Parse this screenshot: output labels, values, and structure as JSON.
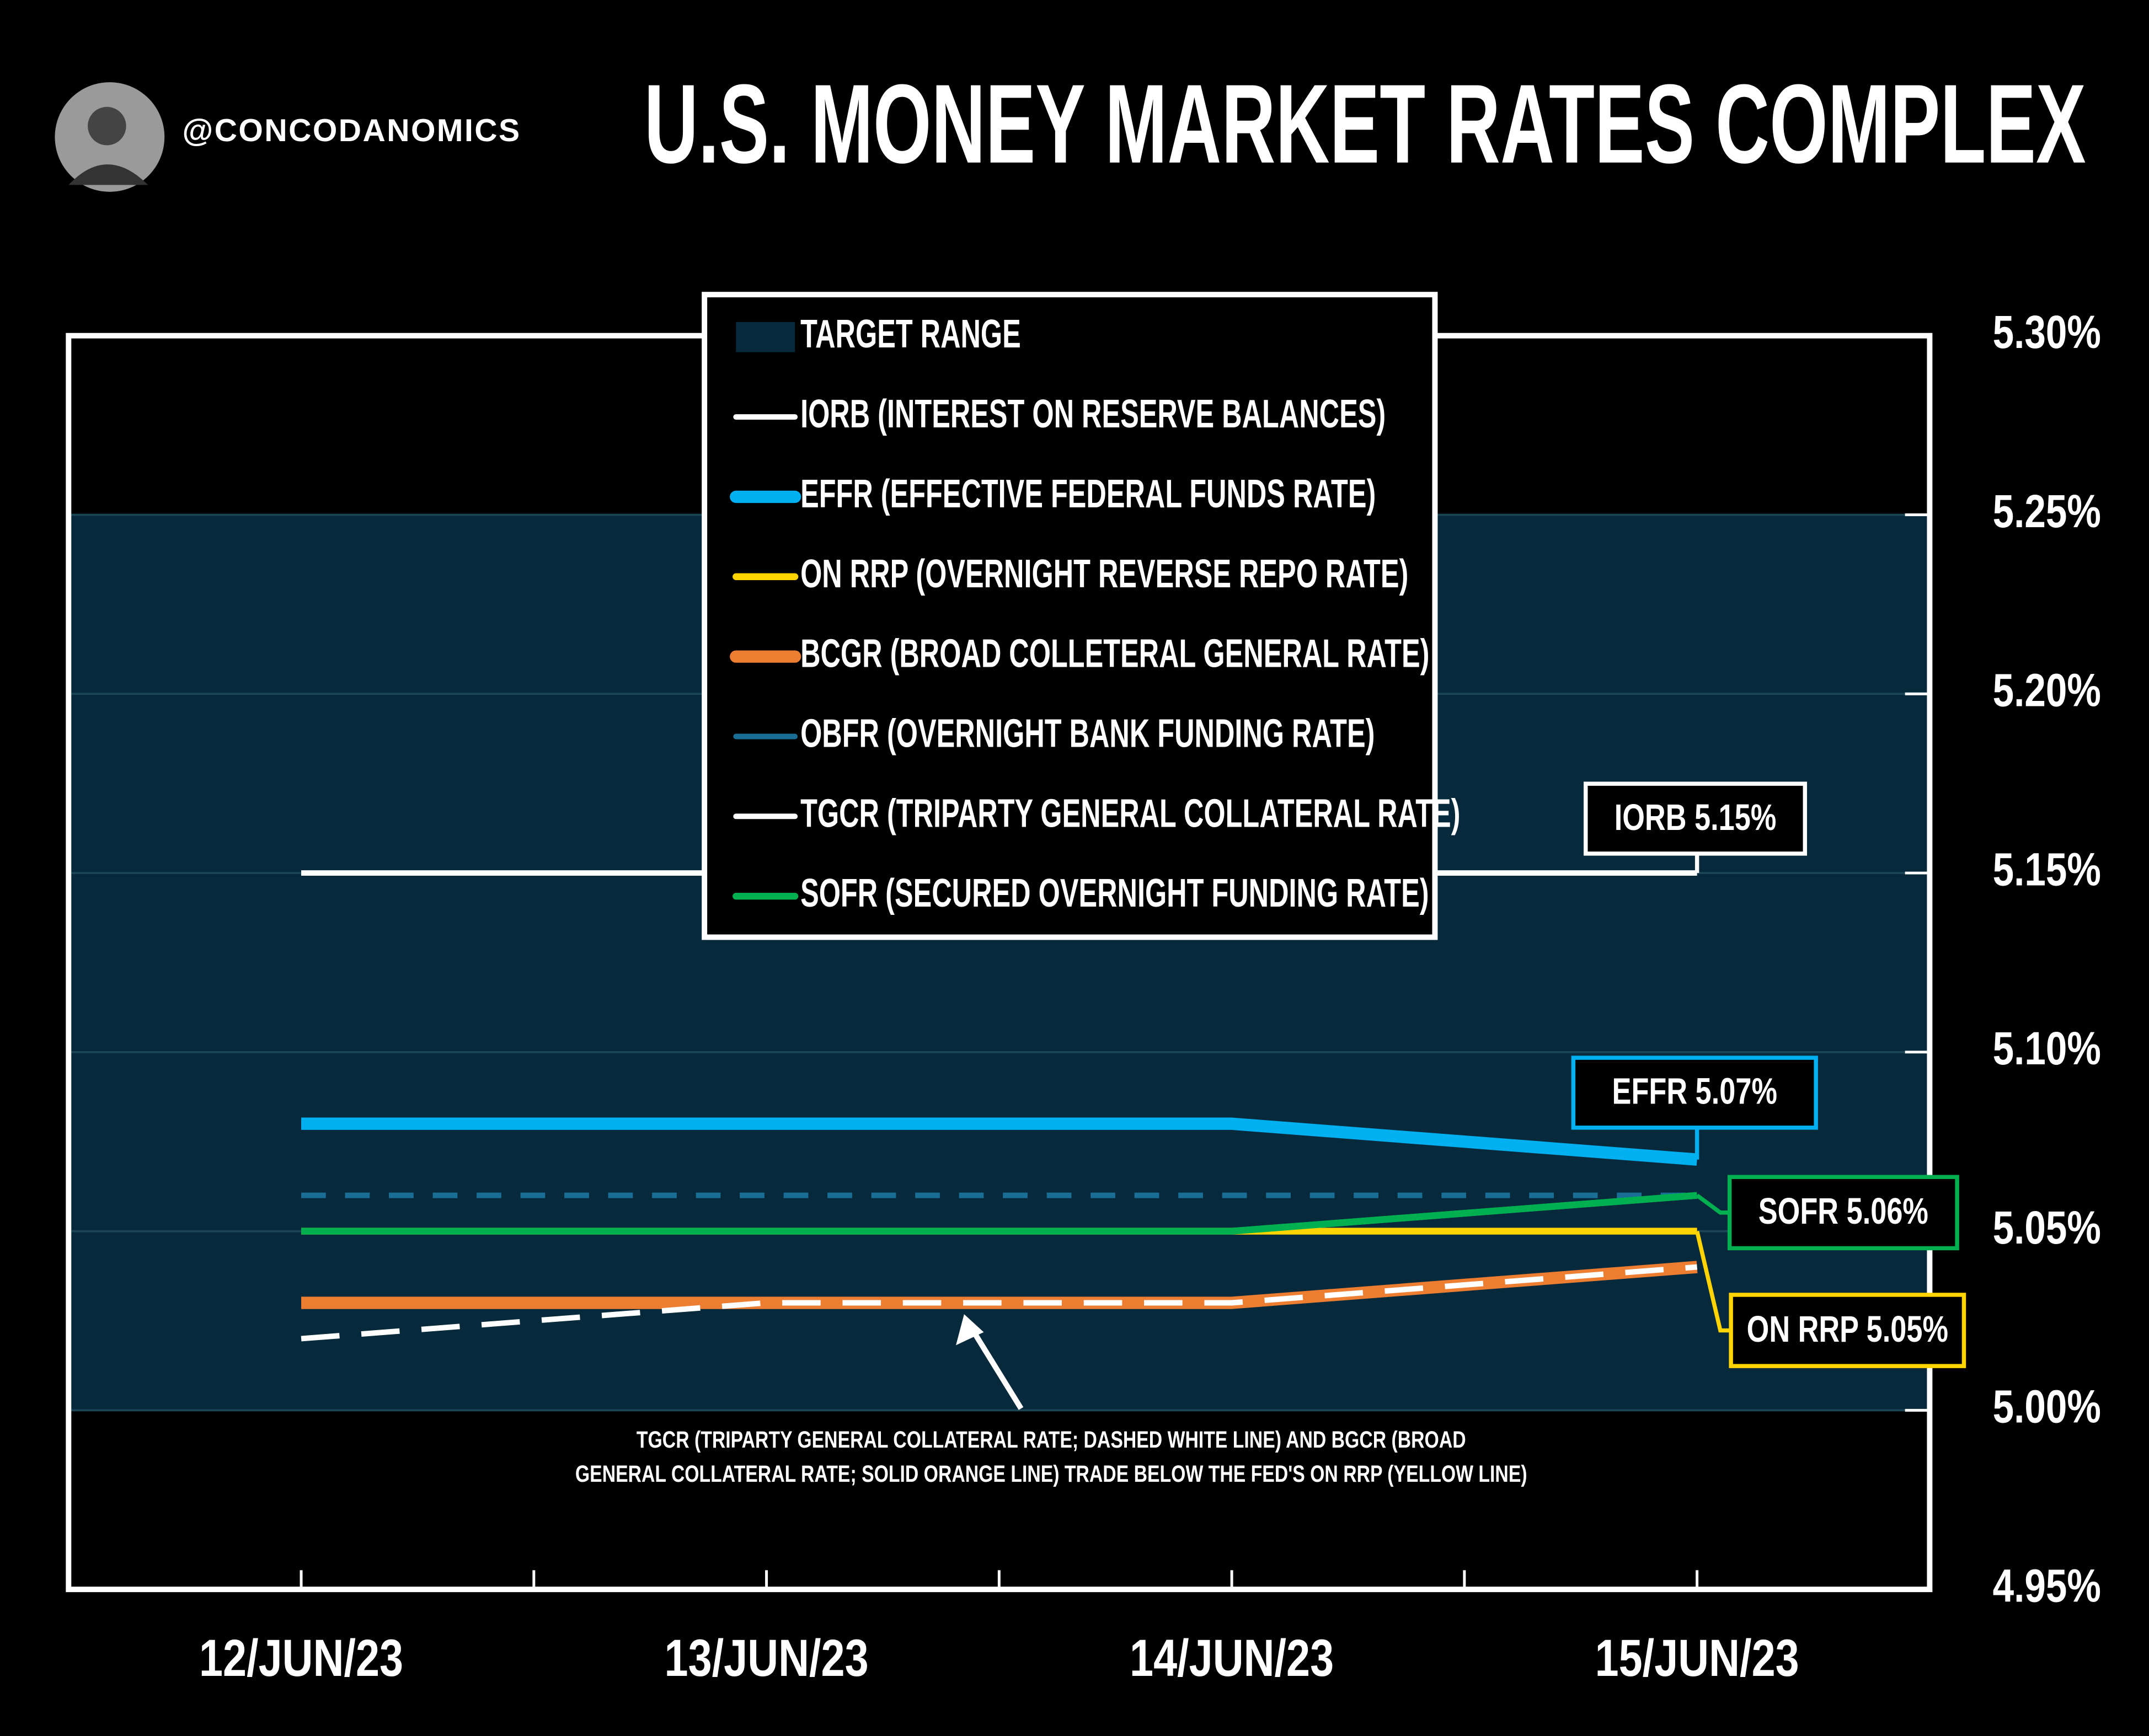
{
  "chart_data": {
    "type": "line",
    "handle": "@CONCODANOMICS",
    "title": "U.S. MONEY MARKET RATES COMPLEX",
    "categories": [
      "12/JUN/23",
      "13/JUN/23",
      "14/JUN/23",
      "15/JUN/23"
    ],
    "ylim": [
      4.95,
      5.3
    ],
    "yticks": [
      {
        "value": 4.95,
        "label": "4.95%"
      },
      {
        "value": 5.0,
        "label": "5.00%"
      },
      {
        "value": 5.05,
        "label": "5.05%"
      },
      {
        "value": 5.1,
        "label": "5.10%"
      },
      {
        "value": 5.15,
        "label": "5.15%"
      },
      {
        "value": 5.2,
        "label": "5.20%"
      },
      {
        "value": 5.25,
        "label": "5.25%"
      },
      {
        "value": 5.3,
        "label": "5.30%"
      }
    ],
    "grid": true,
    "target_range": {
      "name": "TARGET RANGE",
      "values": [
        5.0,
        5.25
      ],
      "color": "#062a3b"
    },
    "series": [
      {
        "name": "IORB (INTEREST ON RESERVE BALANCES)",
        "color": "#ffffff",
        "line_style": "solid",
        "values": [
          5.15,
          5.15,
          5.15,
          5.15
        ],
        "value_labels": [
          null,
          null,
          null,
          "IORB 5.15%"
        ]
      },
      {
        "name": "EFFR (EFFECTIVE FEDERAL FUNDS RATE)",
        "color": "#00b0f0",
        "line_style": "solid",
        "values": [
          5.08,
          5.08,
          5.08,
          5.07
        ],
        "value_labels": [
          null,
          null,
          null,
          "EFFR 5.07%"
        ]
      },
      {
        "name": "ON RRP (OVERNIGHT REVERSE REPO RATE)",
        "color": "#ffd400",
        "line_style": "solid",
        "values": [
          5.05,
          5.05,
          5.05,
          5.05
        ],
        "value_labels": [
          null,
          null,
          null,
          "ON RRP 5.05%"
        ]
      },
      {
        "name": "BCGR (BROAD COLLETERAL GENERAL RATE)",
        "color": "#ed7d31",
        "line_style": "solid",
        "values": [
          5.03,
          5.03,
          5.03,
          5.04
        ]
      },
      {
        "name": "OBFR (OVERNIGHT BANK FUNDING RATE)",
        "color": "#1a6e96",
        "line_style": "dashed",
        "values": [
          5.06,
          5.06,
          5.06,
          5.06
        ]
      },
      {
        "name": "TGCR (TRIPARTY GENERAL COLLATERAL RATE)",
        "color": "#ffffff",
        "line_style": "dashed",
        "values": [
          5.02,
          5.03,
          5.03,
          5.04
        ]
      },
      {
        "name": "SOFR (SECURED OVERNIGHT FUNDING RATE)",
        "color": "#00b050",
        "line_style": "solid",
        "values": [
          5.05,
          5.05,
          5.05,
          5.06
        ],
        "value_labels": [
          null,
          null,
          null,
          "SOFR 5.06%"
        ]
      }
    ],
    "annotation": [
      "TGCR (TRIPARTY GENERAL COLLATERAL RATE; DASHED WHITE LINE) AND BGCR (BROAD",
      "GENERAL COLLATERAL RATE; SOLID ORANGE LINE) TRADE BELOW THE FED'S ON RRP (YELLOW LINE)"
    ]
  }
}
